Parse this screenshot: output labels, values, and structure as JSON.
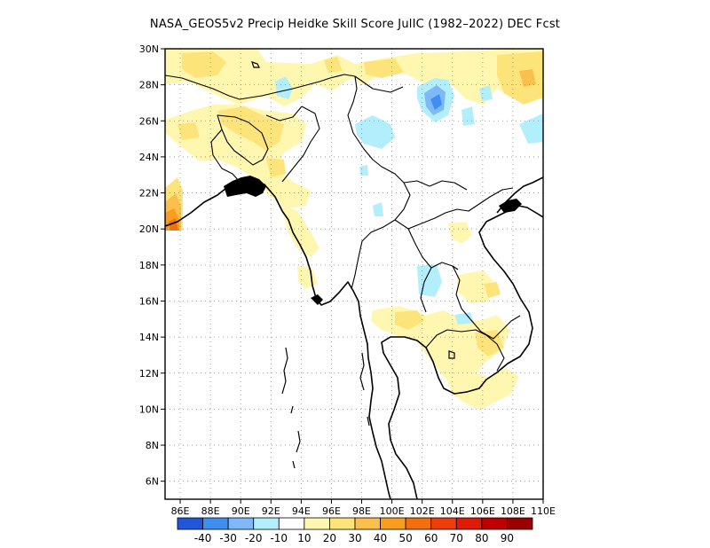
{
  "title": "NASA_GEOS5v2 Precip Heidke Skill Score JulIC (1982–2022) DEC Fcst",
  "map": {
    "lon_range": [
      87,
      110
    ],
    "lat_range": [
      5,
      30
    ],
    "lon_ticks": [
      "86E",
      "88E",
      "90E",
      "92E",
      "94E",
      "96E",
      "98E",
      "100E",
      "102E",
      "104E",
      "106E",
      "108E",
      "110E"
    ],
    "lat_ticks": [
      "30N",
      "28N",
      "26N",
      "24N",
      "22N",
      "20N",
      "18N",
      "16N",
      "14N",
      "12N",
      "10N",
      "8N",
      "6N"
    ],
    "grid": "dotted",
    "field_patches": [
      {
        "lon": 90.5,
        "lat": 25.6,
        "value": 15
      },
      {
        "lon": 91.5,
        "lat": 28.7,
        "value": 15
      },
      {
        "lon": 87.8,
        "lat": 28.8,
        "value": 20
      },
      {
        "lon": 97.0,
        "lat": 29.2,
        "value": 10
      },
      {
        "lon": 99.8,
        "lat": 29.3,
        "value": 15
      },
      {
        "lon": 102.5,
        "lat": 29.7,
        "value": 10
      },
      {
        "lon": 108.2,
        "lat": 28.8,
        "value": 20
      },
      {
        "lon": 87.5,
        "lat": 20.8,
        "value": 60
      },
      {
        "lon": 99.5,
        "lat": 14.8,
        "value": 10
      },
      {
        "lon": 104.5,
        "lat": 12.6,
        "value": 15
      },
      {
        "lon": 104.0,
        "lat": 16.3,
        "value": 10
      },
      {
        "lon": 101.8,
        "lat": 27.6,
        "value": -25
      },
      {
        "lon": 100.0,
        "lat": 25.5,
        "value": -10
      },
      {
        "lon": 101.5,
        "lat": 16.8,
        "value": -10
      },
      {
        "lon": 109.6,
        "lat": 25.8,
        "value": -10
      }
    ]
  },
  "colorbar": {
    "colors": [
      "#1f57d8",
      "#3f8ff0",
      "#7fb8f7",
      "#b3eefc",
      "#ffffff",
      "#fff6b0",
      "#fde47a",
      "#fbbf4c",
      "#f99d1f",
      "#f36f0e",
      "#ef3d0a",
      "#e01a05",
      "#be0000",
      "#9a0000"
    ],
    "labels": [
      "-40",
      "-30",
      "-20",
      "-10",
      "10",
      "20",
      "30",
      "40",
      "50",
      "60",
      "70",
      "80",
      "90"
    ]
  }
}
